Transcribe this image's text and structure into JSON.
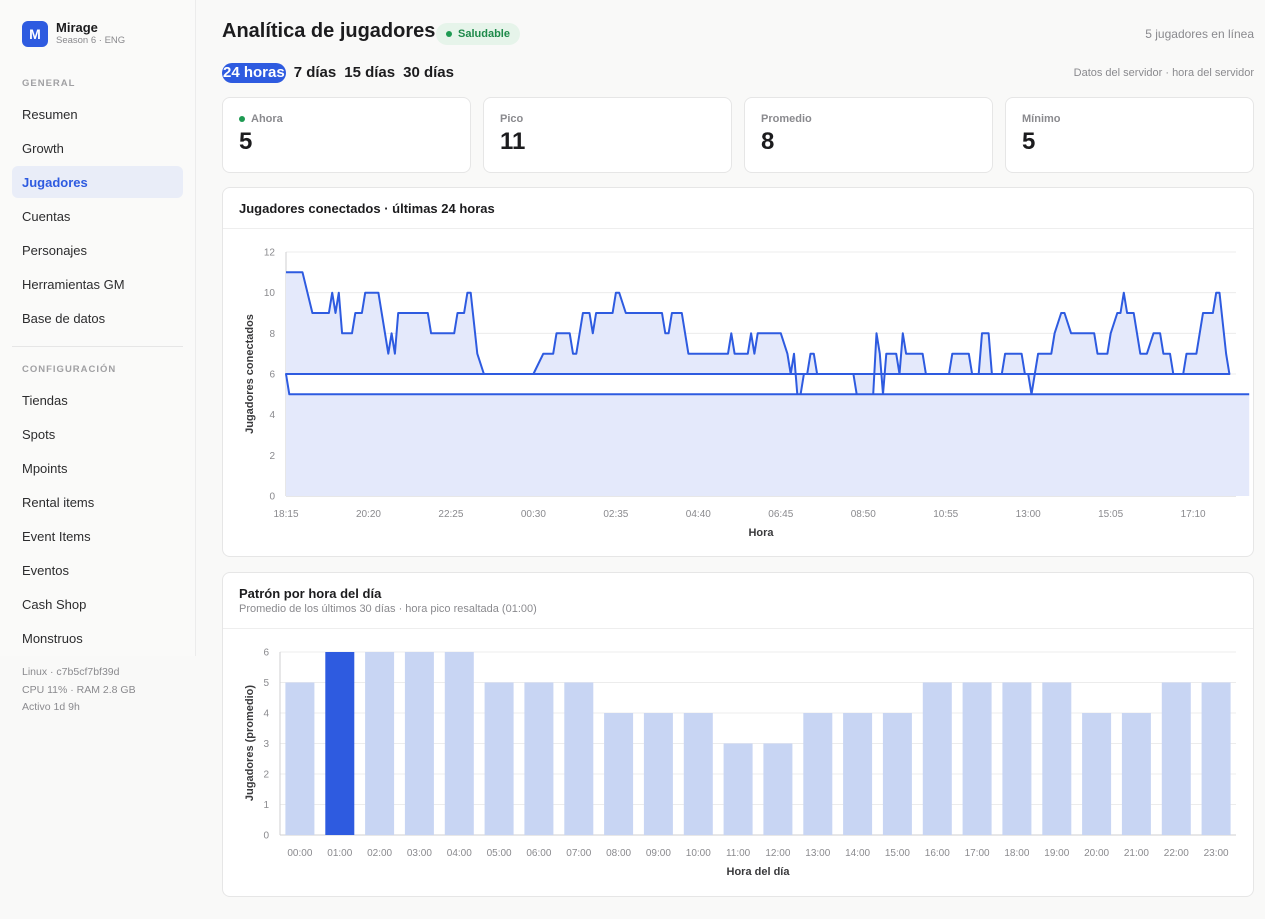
{
  "brand": {
    "initial": "M",
    "name": "Mirage",
    "subtitle": "Season 6 · ENG"
  },
  "sidebar": {
    "general_label": "GENERAL",
    "general_items": [
      {
        "label": "Resumen",
        "active": false
      },
      {
        "label": "Growth",
        "active": false
      },
      {
        "label": "Jugadores",
        "active": true
      },
      {
        "label": "Cuentas",
        "active": false
      },
      {
        "label": "Personajes",
        "active": false
      },
      {
        "label": "Herramientas GM",
        "active": false
      },
      {
        "label": "Base de datos",
        "active": false
      }
    ],
    "config_label": "CONFIGURACIÓN",
    "config_items": [
      {
        "label": "Tiendas"
      },
      {
        "label": "Spots"
      },
      {
        "label": "Mpoints"
      },
      {
        "label": "Rental items"
      },
      {
        "label": "Event Items"
      },
      {
        "label": "Eventos"
      },
      {
        "label": "Cash Shop"
      },
      {
        "label": "Monstruos"
      }
    ],
    "footer": [
      "Linux · c7b5cf7bf39d",
      "CPU 11% · RAM 2.8 GB",
      "Activo 1d 9h"
    ]
  },
  "header": {
    "title": "Analítica de jugadores",
    "status": "Saludable",
    "online": "5 jugadores en línea",
    "server_note": "Datos del servidor · hora del servidor"
  },
  "ranges": [
    {
      "label": "24 horas",
      "active": true
    },
    {
      "label": "7 días",
      "active": false
    },
    {
      "label": "15 días",
      "active": false
    },
    {
      "label": "30 días",
      "active": false
    }
  ],
  "stats": [
    {
      "label": "Ahora",
      "value": "5",
      "live": true
    },
    {
      "label": "Pico",
      "value": "11",
      "live": false
    },
    {
      "label": "Promedio",
      "value": "8",
      "live": false
    },
    {
      "label": "Mínimo",
      "value": "5",
      "live": false
    }
  ],
  "colors": {
    "accent": "#2e5be0",
    "line_fill": "#e4e9fb",
    "bar": "#c8d5f3",
    "bar_highlight": "#2e5be0",
    "success": "#1e9a52"
  },
  "chart_data": [
    {
      "type": "area",
      "title": "Jugadores conectados · últimas 24 horas",
      "xlabel": "Hora",
      "ylabel": "Jugadores conectados",
      "ylim": [
        0,
        12
      ],
      "yticks": [
        0,
        2,
        4,
        6,
        8,
        10,
        12
      ],
      "x_start": "18:15",
      "x_end": "18:15",
      "xtick_labels": [
        "18:15",
        "20:20",
        "22:25",
        "00:30",
        "02:35",
        "04:40",
        "06:45",
        "08:50",
        "10:55",
        "13:00",
        "15:05",
        "17:10"
      ],
      "grid": true,
      "points": [
        [
          "18:15",
          11
        ],
        [
          "18:40",
          11
        ],
        [
          "18:55",
          9
        ],
        [
          "19:20",
          9
        ],
        [
          "19:25",
          10
        ],
        [
          "19:30",
          9
        ],
        [
          "19:35",
          10
        ],
        [
          "19:40",
          8
        ],
        [
          "19:55",
          8
        ],
        [
          "20:00",
          9
        ],
        [
          "20:10",
          9
        ],
        [
          "20:15",
          10
        ],
        [
          "20:35",
          10
        ],
        [
          "20:45",
          8
        ],
        [
          "20:50",
          7
        ],
        [
          "20:55",
          8
        ],
        [
          "21:00",
          7
        ],
        [
          "21:05",
          9
        ],
        [
          "21:50",
          9
        ],
        [
          "21:55",
          8
        ],
        [
          "22:30",
          8
        ],
        [
          "22:35",
          9
        ],
        [
          "22:45",
          9
        ],
        [
          "22:50",
          10
        ],
        [
          "22:55",
          10
        ],
        [
          "23:05",
          7
        ],
        [
          "23:15",
          6
        ],
        [
          "00:30",
          6
        ],
        [
          "00:45",
          7
        ],
        [
          "01:00",
          7
        ],
        [
          "01:05",
          8
        ],
        [
          "01:25",
          8
        ],
        [
          "01:30",
          7
        ],
        [
          "01:35",
          7
        ],
        [
          "01:45",
          9
        ],
        [
          "01:55",
          9
        ],
        [
          "02:00",
          8
        ],
        [
          "02:05",
          9
        ],
        [
          "02:30",
          9
        ],
        [
          "02:35",
          10
        ],
        [
          "02:40",
          10
        ],
        [
          "02:50",
          9
        ],
        [
          "03:45",
          9
        ],
        [
          "03:50",
          8
        ],
        [
          "03:55",
          8
        ],
        [
          "04:00",
          9
        ],
        [
          "04:15",
          9
        ],
        [
          "04:25",
          7
        ],
        [
          "05:25",
          7
        ],
        [
          "05:30",
          8
        ],
        [
          "05:35",
          7
        ],
        [
          "05:55",
          7
        ],
        [
          "06:00",
          8
        ],
        [
          "06:05",
          7
        ],
        [
          "06:10",
          8
        ],
        [
          "06:45",
          8
        ],
        [
          "06:55",
          7
        ],
        [
          "07:00",
          6
        ],
        [
          "07:05",
          7
        ],
        [
          "07:10",
          5
        ],
        [
          "07:15",
          5
        ],
        [
          "07:20",
          6
        ],
        [
          "07:25",
          6
        ],
        [
          "07:30",
          7
        ],
        [
          "07:35",
          7
        ],
        [
          "07:40",
          6
        ],
        [
          "08:35",
          6
        ],
        [
          "08:40",
          5
        ],
        [
          "09:05",
          5
        ],
        [
          "09:10",
          8
        ],
        [
          "09:15",
          7
        ],
        [
          "09:20",
          5
        ],
        [
          "09:25",
          7
        ],
        [
          "09:40",
          7
        ],
        [
          "09:45",
          6
        ],
        [
          "09:50",
          8
        ],
        [
          "09:55",
          7
        ],
        [
          "10:20",
          7
        ],
        [
          "10:25",
          6
        ],
        [
          "11:00",
          6
        ],
        [
          "11:05",
          7
        ],
        [
          "11:30",
          7
        ],
        [
          "11:35",
          6
        ],
        [
          "11:45",
          6
        ],
        [
          "11:50",
          8
        ],
        [
          "12:00",
          8
        ],
        [
          "12:05",
          6
        ],
        [
          "12:20",
          6
        ],
        [
          "12:25",
          7
        ],
        [
          "12:50",
          7
        ],
        [
          "12:55",
          6
        ],
        [
          "13:00",
          6
        ],
        [
          "13:05",
          5
        ],
        [
          "13:10",
          6
        ],
        [
          "13:15",
          7
        ],
        [
          "13:35",
          7
        ],
        [
          "13:40",
          8
        ],
        [
          "13:50",
          9
        ],
        [
          "13:55",
          9
        ],
        [
          "14:05",
          8
        ],
        [
          "14:40",
          8
        ],
        [
          "14:45",
          7
        ],
        [
          "15:00",
          7
        ],
        [
          "15:05",
          8
        ],
        [
          "15:15",
          9
        ],
        [
          "15:20",
          9
        ],
        [
          "15:25",
          10
        ],
        [
          "15:30",
          9
        ],
        [
          "15:40",
          9
        ],
        [
          "15:45",
          8
        ],
        [
          "15:50",
          7
        ],
        [
          "16:00",
          7
        ],
        [
          "16:10",
          8
        ],
        [
          "16:20",
          8
        ],
        [
          "16:25",
          7
        ],
        [
          "16:35",
          7
        ],
        [
          "16:40",
          6
        ],
        [
          "16:55",
          6
        ],
        [
          "17:00",
          7
        ],
        [
          "17:15",
          7
        ],
        [
          "17:20",
          8
        ],
        [
          "17:25",
          9
        ],
        [
          "17:40",
          9
        ],
        [
          "17:45",
          10
        ],
        [
          "17:50",
          10
        ],
        [
          "18:00",
          7
        ],
        [
          "18:05",
          6
        ],
        [
          "18:15",
          6
        ],
        [
          "18:20",
          5
        ],
        [
          "18:35",
          5
        ]
      ]
    },
    {
      "type": "bar",
      "title": "Patrón por hora del día",
      "subtitle": "Promedio de los últimos 30 días · hora pico resaltada (01:00)",
      "xlabel": "Hora del día",
      "ylabel": "Jugadores (promedio)",
      "ylim": [
        0,
        6
      ],
      "yticks": [
        0,
        1,
        2,
        3,
        4,
        5,
        6
      ],
      "grid": true,
      "highlight": "01:00",
      "categories": [
        "00:00",
        "01:00",
        "02:00",
        "03:00",
        "04:00",
        "05:00",
        "06:00",
        "07:00",
        "08:00",
        "09:00",
        "10:00",
        "11:00",
        "12:00",
        "13:00",
        "14:00",
        "15:00",
        "16:00",
        "17:00",
        "18:00",
        "19:00",
        "20:00",
        "21:00",
        "22:00",
        "23:00"
      ],
      "values": [
        5,
        6,
        6,
        6,
        6,
        5,
        5,
        5,
        4,
        4,
        4,
        3,
        3,
        4,
        4,
        4,
        5,
        5,
        5,
        5,
        4,
        4,
        5,
        5
      ]
    }
  ]
}
